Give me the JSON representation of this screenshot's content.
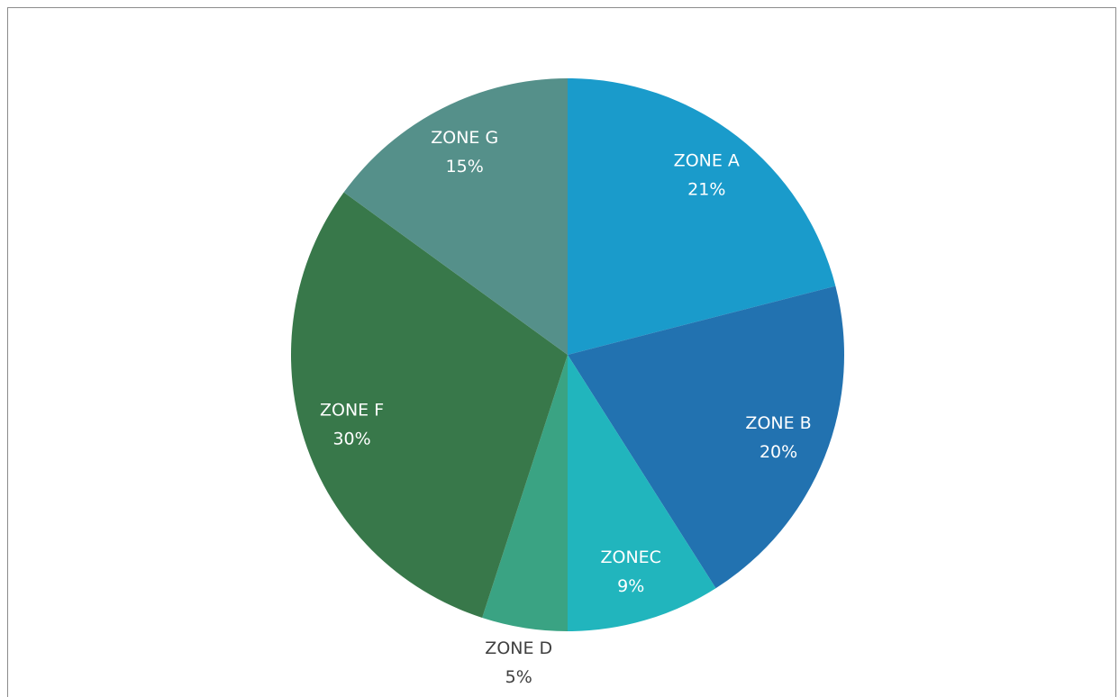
{
  "chart_data": {
    "type": "pie",
    "categories": [
      "ZONE A",
      "ZONE B",
      "ZONEC",
      "ZONE D",
      "ZONE F",
      "ZONE G"
    ],
    "values": [
      21,
      20,
      9,
      5,
      30,
      15
    ],
    "value_labels": [
      "21%",
      "20%",
      "9%",
      "5%",
      "30%",
      "15%"
    ],
    "colors": [
      "#1a9bcb",
      "#2272b0",
      "#21b5bd",
      "#3aa383",
      "#38784a",
      "#55908a"
    ]
  }
}
